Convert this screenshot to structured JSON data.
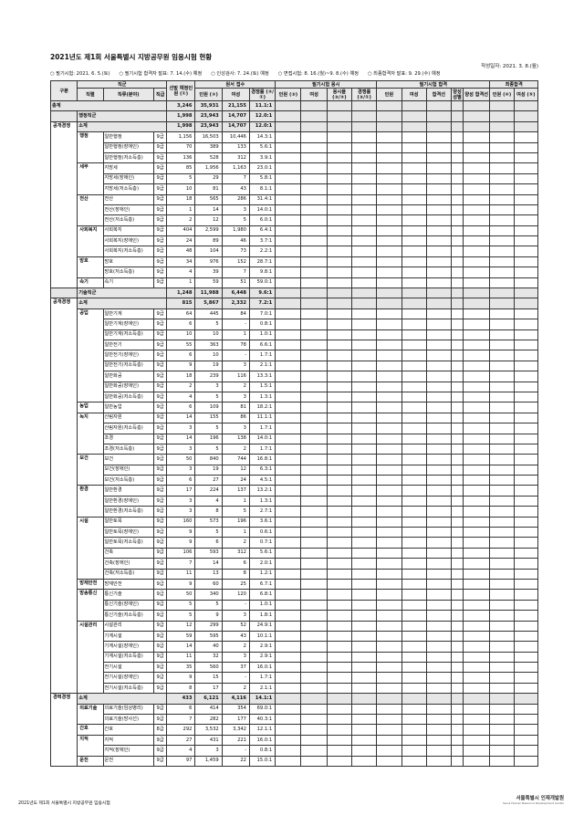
{
  "title": "2021년도 제1회 서울특별시 지방공무원 임용시험 현황",
  "date": "작성일자: 2021. 3. 8.(월)",
  "notes": [
    "○ 필기시험: 2021. 6. 5.(토)",
    "○ 필기시험 합격자 발표: 7. 14.(수) 예정",
    "○ 인성검사: 7. 24.(토) 예정",
    "○ 면접시험: 8. 16.(월)~9. 8.(수) 예정",
    "○ 최종합격자 발표: 9. 29.(수) 예정"
  ],
  "header": {
    "gubun": "구분",
    "jikgun": "직군",
    "selected": "선발 예정인원 (①)",
    "apply": "원서 접수",
    "written_attend": "필기시험 응시",
    "written_pass": "필기시험 합격",
    "final": "최종합격",
    "sub": [
      "직렬",
      "직류(분야)",
      "직급",
      "인원 (②)",
      "여성",
      "경쟁률 (②/①)",
      "인원 (③)",
      "여성",
      "응시율 (③/②)",
      "경쟁률 (③/①)",
      "인원",
      "여성",
      "합격선",
      "양성 성별",
      "양성 합격선",
      "인원 (④)",
      "여성 (⑤)"
    ]
  },
  "total": {
    "label": "총계",
    "values": [
      "3,246",
      "35,931",
      "21,155",
      "11.1:1"
    ]
  },
  "sections": [
    {
      "label": "행정직군",
      "values": [
        "1,998",
        "23,943",
        "14,707",
        "12.0:1"
      ],
      "groups": [
        {
          "label": "공개경쟁",
          "subtotal_label": "소계",
          "values": [
            "1,998",
            "23,943",
            "14,707",
            "12.0:1"
          ],
          "series": [
            {
              "name": "행정",
              "rows": [
                [
                  "일반행정",
                  "9급",
                  "1,156",
                  "16,503",
                  "10,446",
                  "14.3:1"
                ],
                [
                  "일반행정(장애인)",
                  "9급",
                  "70",
                  "389",
                  "133",
                  "5.6:1"
                ],
                [
                  "일반행정(저소득층)",
                  "9급",
                  "136",
                  "528",
                  "312",
                  "3.9:1"
                ]
              ]
            },
            {
              "name": "세무",
              "rows": [
                [
                  "지방세",
                  "9급",
                  "85",
                  "1,956",
                  "1,163",
                  "23.0:1"
                ],
                [
                  "지방세(장애인)",
                  "9급",
                  "5",
                  "29",
                  "7",
                  "5.8:1"
                ],
                [
                  "지방세(저소득층)",
                  "9급",
                  "10",
                  "81",
                  "43",
                  "8.1:1"
                ]
              ]
            },
            {
              "name": "전산",
              "rows": [
                [
                  "전산",
                  "9급",
                  "18",
                  "565",
                  "286",
                  "31.4:1"
                ],
                [
                  "전산(장애인)",
                  "9급",
                  "1",
                  "14",
                  "3",
                  "14.0:1"
                ],
                [
                  "전산(저소득층)",
                  "9급",
                  "2",
                  "12",
                  "5",
                  "6.0:1"
                ]
              ]
            },
            {
              "name": "사회복지",
              "rows": [
                [
                  "사회복지",
                  "9급",
                  "404",
                  "2,599",
                  "1,980",
                  "6.4:1"
                ],
                [
                  "사회복지(장애인)",
                  "9급",
                  "24",
                  "89",
                  "46",
                  "3.7:1"
                ],
                [
                  "사회복지(저소득층)",
                  "9급",
                  "48",
                  "104",
                  "73",
                  "2.2:1"
                ]
              ]
            },
            {
              "name": "방호",
              "rows": [
                [
                  "방호",
                  "9급",
                  "34",
                  "976",
                  "152",
                  "28.7:1"
                ],
                [
                  "방호(저소득층)",
                  "9급",
                  "4",
                  "39",
                  "7",
                  "9.8:1"
                ]
              ]
            },
            {
              "name": "속기",
              "rows": [
                [
                  "속기",
                  "9급",
                  "1",
                  "59",
                  "51",
                  "59.0:1"
                ]
              ]
            }
          ]
        }
      ]
    },
    {
      "label": "기술직군",
      "values": [
        "1,248",
        "11,988",
        "6,448",
        "9.6:1"
      ],
      "groups": [
        {
          "label": "공개경쟁",
          "subtotal_label": "소계",
          "values": [
            "815",
            "5,867",
            "2,332",
            "7.2:1"
          ],
          "series": [
            {
              "name": "공업",
              "rows": [
                [
                  "일반기계",
                  "9급",
                  "64",
                  "445",
                  "84",
                  "7.0:1"
                ],
                [
                  "일반기계(장애인)",
                  "9급",
                  "6",
                  "5",
                  "-",
                  "0.8:1"
                ],
                [
                  "일반기계(저소득층)",
                  "9급",
                  "10",
                  "10",
                  "1",
                  "1.0:1"
                ],
                [
                  "일반전기",
                  "9급",
                  "55",
                  "363",
                  "78",
                  "6.6:1"
                ],
                [
                  "일반전기(장애인)",
                  "9급",
                  "6",
                  "10",
                  "-",
                  "1.7:1"
                ],
                [
                  "일반전기(저소득층)",
                  "9급",
                  "9",
                  "19",
                  "3",
                  "2.1:1"
                ],
                [
                  "일반화공",
                  "9급",
                  "18",
                  "239",
                  "116",
                  "13.3:1"
                ],
                [
                  "일반화공(장애인)",
                  "9급",
                  "2",
                  "3",
                  "2",
                  "1.5:1"
                ],
                [
                  "일반화공(저소득층)",
                  "9급",
                  "4",
                  "5",
                  "3",
                  "1.3:1"
                ]
              ]
            },
            {
              "name": "농업",
              "rows": [
                [
                  "일반농업",
                  "9급",
                  "6",
                  "109",
                  "81",
                  "18.2:1"
                ]
              ]
            },
            {
              "name": "녹지",
              "rows": [
                [
                  "산림자원",
                  "9급",
                  "14",
                  "155",
                  "86",
                  "11.1:1"
                ],
                [
                  "산림자원(저소득층)",
                  "9급",
                  "3",
                  "5",
                  "3",
                  "1.7:1"
                ],
                [
                  "조경",
                  "9급",
                  "14",
                  "196",
                  "138",
                  "14.0:1"
                ],
                [
                  "조경(저소득층)",
                  "9급",
                  "3",
                  "5",
                  "2",
                  "1.7:1"
                ]
              ]
            },
            {
              "name": "보건",
              "rows": [
                [
                  "보건",
                  "9급",
                  "50",
                  "840",
                  "744",
                  "16.8:1"
                ],
                [
                  "보건(장애인)",
                  "9급",
                  "3",
                  "19",
                  "12",
                  "6.3:1"
                ],
                [
                  "보건(저소득층)",
                  "9급",
                  "6",
                  "27",
                  "24",
                  "4.5:1"
                ]
              ]
            },
            {
              "name": "환경",
              "rows": [
                [
                  "일반환경",
                  "9급",
                  "17",
                  "224",
                  "137",
                  "13.2:1"
                ],
                [
                  "일반환경(장애인)",
                  "9급",
                  "3",
                  "4",
                  "1",
                  "1.3:1"
                ],
                [
                  "일반환경(저소득층)",
                  "9급",
                  "3",
                  "8",
                  "5",
                  "2.7:1"
                ]
              ]
            },
            {
              "name": "시설",
              "rows": [
                [
                  "일반토목",
                  "9급",
                  "160",
                  "573",
                  "196",
                  "3.6:1"
                ],
                [
                  "일반토목(장애인)",
                  "9급",
                  "9",
                  "5",
                  "1",
                  "0.6:1"
                ],
                [
                  "일반토목(저소득층)",
                  "9급",
                  "9",
                  "6",
                  "2",
                  "0.7:1"
                ],
                [
                  "건축",
                  "9급",
                  "106",
                  "593",
                  "312",
                  "5.6:1"
                ],
                [
                  "건축(장애인)",
                  "9급",
                  "7",
                  "14",
                  "6",
                  "2.0:1"
                ],
                [
                  "건축(저소득층)",
                  "9급",
                  "11",
                  "13",
                  "8",
                  "1.2:1"
                ]
              ]
            },
            {
              "name": "방재안전",
              "rows": [
                [
                  "방재안전",
                  "9급",
                  "9",
                  "60",
                  "25",
                  "6.7:1"
                ]
              ]
            },
            {
              "name": "방송통신",
              "rows": [
                [
                  "통신기술",
                  "9급",
                  "50",
                  "340",
                  "120",
                  "6.8:1"
                ],
                [
                  "통신기술(장애인)",
                  "9급",
                  "5",
                  "5",
                  "-",
                  "1.0:1"
                ],
                [
                  "통신기술(저소득층)",
                  "9급",
                  "5",
                  "9",
                  "3",
                  "1.8:1"
                ]
              ]
            },
            {
              "name": "시설관리",
              "rows": [
                [
                  "시설관리",
                  "9급",
                  "12",
                  "299",
                  "52",
                  "24.9:1"
                ],
                [
                  "기계시설",
                  "9급",
                  "59",
                  "595",
                  "43",
                  "10.1:1"
                ],
                [
                  "기계시설(장애인)",
                  "9급",
                  "14",
                  "40",
                  "2",
                  "2.9:1"
                ],
                [
                  "기계시설(저소득층)",
                  "9급",
                  "11",
                  "32",
                  "3",
                  "2.9:1"
                ],
                [
                  "전기시설",
                  "9급",
                  "35",
                  "560",
                  "37",
                  "16.0:1"
                ],
                [
                  "전기시설(장애인)",
                  "9급",
                  "9",
                  "15",
                  "-",
                  "1.7:1"
                ],
                [
                  "전기시설(저소득층)",
                  "9급",
                  "8",
                  "17",
                  "2",
                  "2.1:1"
                ]
              ]
            }
          ]
        },
        {
          "label": "경력경쟁",
          "subtotal_label": "소계",
          "values": [
            "433",
            "6,121",
            "4,116",
            "14.1:1"
          ],
          "series": [
            {
              "name": "의료기술",
              "rows": [
                [
                  "의료기술(임상병리)",
                  "9급",
                  "6",
                  "414",
                  "354",
                  "69.0:1"
                ],
                [
                  "의료기술(방사선)",
                  "9급",
                  "7",
                  "282",
                  "177",
                  "40.3:1"
                ]
              ]
            },
            {
              "name": "간호",
              "rows": [
                [
                  "간호",
                  "8급",
                  "292",
                  "3,532",
                  "3,342",
                  "12.1:1"
                ]
              ]
            },
            {
              "name": "지적",
              "rows": [
                [
                  "지적",
                  "9급",
                  "27",
                  "431",
                  "221",
                  "16.0:1"
                ],
                [
                  "지적(장애인)",
                  "9급",
                  "4",
                  "3",
                  "-",
                  "0.8:1"
                ]
              ]
            },
            {
              "name": "운전",
              "rows": [
                [
                  "운전",
                  "9급",
                  "97",
                  "1,459",
                  "22",
                  "15.0:1"
                ]
              ]
            }
          ]
        }
      ]
    }
  ],
  "footer": "2021년도 제1회 서울특별시 지방공무원 임용시험",
  "logo": {
    "text": "서울특별시 인재개발원",
    "en": "Seoul Human Resource Development Center"
  },
  "colors": {
    "header_bg": "#e8e8e8",
    "subtotal_bg": "#e6e6e6",
    "logo_blue": "#1e4d9a"
  }
}
